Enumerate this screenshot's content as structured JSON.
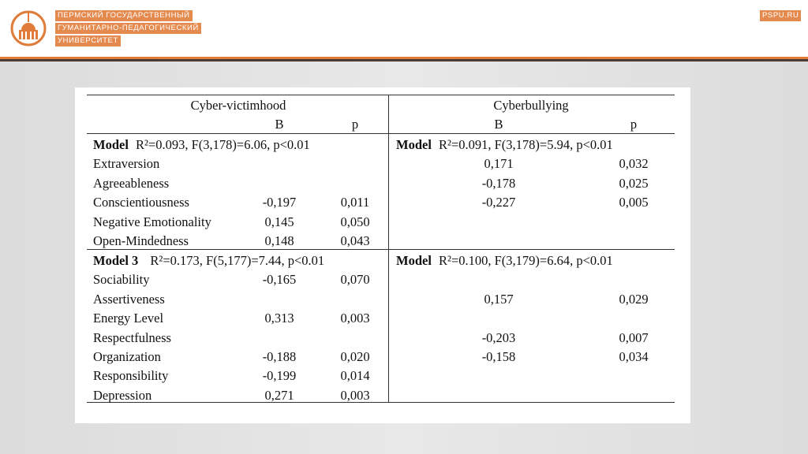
{
  "header": {
    "university": [
      "ПЕРМСКИЙ ГОСУДАРСТВЕННЫЙ",
      "ГУМАНИТАРНО-ПЕДАГОГИЧЕСКИЙ",
      "УНИВЕРСИТЕТ"
    ],
    "site": "PSPU.RU"
  },
  "table": {
    "sections": [
      "Cyber-victimhood",
      "Cyberbullying"
    ],
    "columns": [
      "B",
      "p",
      "B",
      "p"
    ],
    "groups": [
      {
        "models": [
          {
            "label": "Model",
            "stats": "R²=0.093, F(3,178)=6.06, p<0.01"
          },
          {
            "label": "Model",
            "stats": "R²=0.091, F(3,178)=5.94, p<0.01"
          }
        ],
        "rows": [
          [
            "Extraversion",
            null,
            null,
            "0,171",
            "0,032"
          ],
          [
            "Agreeableness",
            null,
            null,
            "-0,178",
            "0,025"
          ],
          [
            "Conscientiousness",
            "-0,197",
            "0,011",
            "-0,227",
            "0,005"
          ],
          [
            "Negative Emotionality",
            "0,145",
            "0,050",
            null,
            null
          ],
          [
            "Open-Mindedness",
            "0,148",
            "0,043",
            null,
            null
          ]
        ]
      },
      {
        "models": [
          {
            "label": "Model 3",
            "stats": "R²=0.173, F(5,177)=7.44, p<0.01"
          },
          {
            "label": "Model",
            "stats": "R²=0.100, F(3,179)=6.64, p<0.01"
          }
        ],
        "rows": [
          [
            "Sociability",
            "-0,165",
            "0,070",
            null,
            null
          ],
          [
            "Assertiveness",
            null,
            null,
            "0,157",
            "0,029"
          ],
          [
            "Energy Level",
            "0,313",
            "0,003",
            null,
            null
          ],
          [
            "Respectfulness",
            null,
            null,
            "-0,203",
            "0,007"
          ],
          [
            "Organization",
            "-0,188",
            "0,020",
            "-0,158",
            "0,034"
          ],
          [
            "Responsibility",
            "-0,199",
            "0,014",
            null,
            null
          ],
          [
            "Depression",
            "0,271",
            "0,003",
            null,
            null
          ]
        ]
      }
    ]
  }
}
